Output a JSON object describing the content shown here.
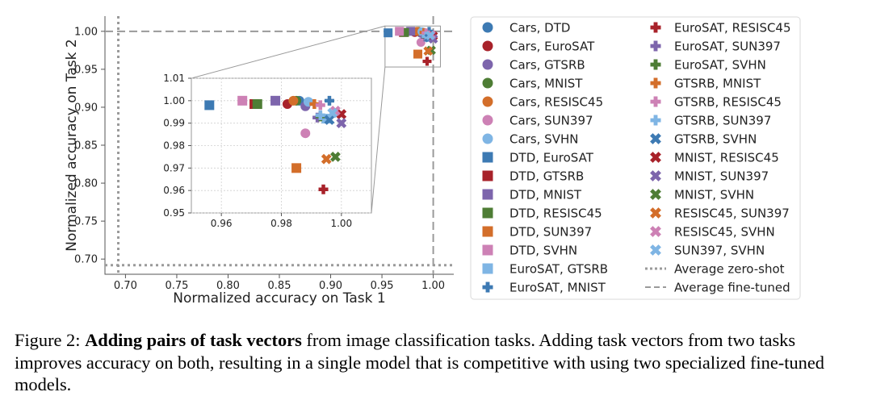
{
  "chart_data": {
    "type": "scatter",
    "main": {
      "xlabel": "Normalized accuracy on Task 1",
      "ylabel": "Normalized accuracy on Task 2",
      "xlim": [
        0.68,
        1.02
      ],
      "ylim": [
        0.68,
        1.02
      ],
      "xticks": [
        "0.70",
        "0.75",
        "0.80",
        "0.85",
        "0.90",
        "0.95",
        "1.00"
      ],
      "yticks": [
        "0.70",
        "0.75",
        "0.80",
        "0.85",
        "0.90",
        "0.95",
        "1.00"
      ],
      "average_zero_shot": {
        "x": 0.693,
        "y": 0.692
      },
      "average_fine_tuned": {
        "x": 1.0,
        "y": 1.0
      }
    },
    "inset": {
      "xlim": [
        0.95,
        1.01
      ],
      "ylim": [
        0.95,
        1.01
      ],
      "xticks": [
        "0.96",
        "0.98",
        "1.00"
      ],
      "yticks": [
        "0.95",
        "0.96",
        "0.97",
        "0.98",
        "0.99",
        "1.00",
        "1.01"
      ],
      "grid": true
    },
    "series": [
      {
        "name": "Cars, DTD",
        "marker": "circle",
        "color": "#3d7ab3",
        "x": 0.986,
        "y": 1.0
      },
      {
        "name": "Cars, EuroSAT",
        "marker": "circle",
        "color": "#a8222a",
        "x": 0.982,
        "y": 0.9985
      },
      {
        "name": "Cars, GTSRB",
        "marker": "circle",
        "color": "#7d65ac",
        "x": 0.988,
        "y": 0.9975
      },
      {
        "name": "Cars, MNIST",
        "marker": "circle",
        "color": "#4e7d35",
        "x": 0.985,
        "y": 1.0
      },
      {
        "name": "Cars, RESISC45",
        "marker": "circle",
        "color": "#d36e2a",
        "x": 0.984,
        "y": 1.0
      },
      {
        "name": "Cars, SUN397",
        "marker": "circle",
        "color": "#cd81b5",
        "x": 0.988,
        "y": 0.9855
      },
      {
        "name": "Cars, SVHN",
        "marker": "circle",
        "color": "#7fb5e4",
        "x": 0.989,
        "y": 0.9995
      },
      {
        "name": "DTD, EuroSAT",
        "marker": "square",
        "color": "#3d7ab3",
        "x": 0.956,
        "y": 0.998
      },
      {
        "name": "DTD, GTSRB",
        "marker": "square",
        "color": "#a8222a",
        "x": 0.971,
        "y": 0.9985
      },
      {
        "name": "DTD, MNIST",
        "marker": "square",
        "color": "#7d65ac",
        "x": 0.978,
        "y": 1.0
      },
      {
        "name": "DTD, RESISC45",
        "marker": "square",
        "color": "#4e7d35",
        "x": 0.972,
        "y": 0.9985
      },
      {
        "name": "DTD, SUN397",
        "marker": "square",
        "color": "#d36e2a",
        "x": 0.985,
        "y": 0.97
      },
      {
        "name": "DTD, SVHN",
        "marker": "square",
        "color": "#cd81b5",
        "x": 0.967,
        "y": 1.0
      },
      {
        "name": "EuroSAT, GTSRB",
        "marker": "square",
        "color": "#7fb5e4",
        "x": 0.995,
        "y": 0.992
      },
      {
        "name": "EuroSAT, MNIST",
        "marker": "plus",
        "color": "#3d7ab3",
        "x": 0.996,
        "y": 1.0
      },
      {
        "name": "EuroSAT, RESISC45",
        "marker": "plus",
        "color": "#a8222a",
        "x": 0.994,
        "y": 0.9605
      },
      {
        "name": "EuroSAT, SUN397",
        "marker": "plus",
        "color": "#7d65ac",
        "x": 0.992,
        "y": 0.9925
      },
      {
        "name": "EuroSAT, SVHN",
        "marker": "plus",
        "color": "#4e7d35",
        "x": 0.993,
        "y": 0.993
      },
      {
        "name": "GTSRB, MNIST",
        "marker": "plus",
        "color": "#d36e2a",
        "x": 0.991,
        "y": 0.9985
      },
      {
        "name": "GTSRB, RESISC45",
        "marker": "plus",
        "color": "#cd81b5",
        "x": 0.993,
        "y": 0.998
      },
      {
        "name": "GTSRB, SUN397",
        "marker": "plus",
        "color": "#7fb5e4",
        "x": 0.993,
        "y": 0.9935
      },
      {
        "name": "GTSRB, SVHN",
        "marker": "x",
        "color": "#3d7ab3",
        "x": 0.996,
        "y": 0.9915
      },
      {
        "name": "MNIST, RESISC45",
        "marker": "x",
        "color": "#a8222a",
        "x": 1.0,
        "y": 0.994
      },
      {
        "name": "MNIST, SUN397",
        "marker": "x",
        "color": "#7d65ac",
        "x": 1.0,
        "y": 0.99
      },
      {
        "name": "MNIST, SVHN",
        "marker": "x",
        "color": "#4e7d35",
        "x": 0.998,
        "y": 0.975
      },
      {
        "name": "RESISC45, SUN397",
        "marker": "x",
        "color": "#d36e2a",
        "x": 0.995,
        "y": 0.974
      },
      {
        "name": "RESISC45, SVHN",
        "marker": "x",
        "color": "#cd81b5",
        "x": 0.998,
        "y": 0.9955
      },
      {
        "name": "SUN397, SVHN",
        "marker": "x",
        "color": "#7fb5e4",
        "x": 0.997,
        "y": 0.9945
      }
    ],
    "reference_lines": [
      {
        "name": "Average zero-shot",
        "style": "dotted",
        "color": "#9a9a9a"
      },
      {
        "name": "Average fine-tuned",
        "style": "dashed",
        "color": "#9a9a9a"
      }
    ],
    "legend_position": "right"
  },
  "caption": {
    "label": "Figure 2:",
    "bold": "Adding pairs of task vectors",
    "text": "from image classification tasks. Adding task vectors from two tasks improves accuracy on both, resulting in a single model that is competitive with using two specialized fine-tuned models."
  }
}
